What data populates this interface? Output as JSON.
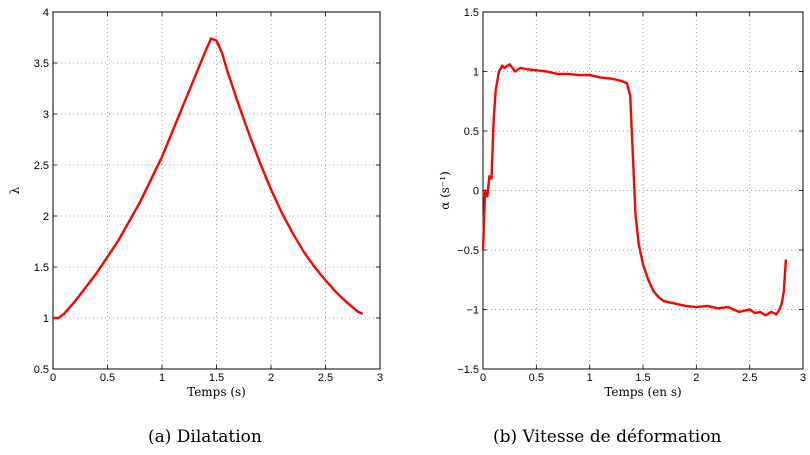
{
  "chart_data": [
    {
      "type": "line",
      "caption": "(a) Dilatation",
      "xlabel": "Temps (s)",
      "ylabel": "λ",
      "xlim": [
        0,
        3
      ],
      "ylim": [
        0.5,
        4
      ],
      "xticks": [
        0,
        0.5,
        1,
        1.5,
        2,
        2.5,
        3
      ],
      "xtick_labels": [
        "0",
        "0.5",
        "1",
        "1.5",
        "2",
        "2.5",
        "3"
      ],
      "yticks": [
        0.5,
        1,
        1.5,
        2,
        2.5,
        3,
        3.5,
        4
      ],
      "ytick_labels": [
        "0.5",
        "1",
        "1.5",
        "2",
        "2.5",
        "3",
        "3.5",
        "4"
      ],
      "grid": true,
      "color": "#ff0000",
      "series": [
        {
          "x": [
            0,
            0.05,
            0.1,
            0.2,
            0.3,
            0.4,
            0.5,
            0.6,
            0.7,
            0.8,
            0.9,
            1.0,
            1.1,
            1.2,
            1.3,
            1.4,
            1.45,
            1.5,
            1.55,
            1.6,
            1.7,
            1.8,
            1.9,
            2.0,
            2.1,
            2.2,
            2.3,
            2.4,
            2.5,
            2.6,
            2.7,
            2.8,
            2.84
          ],
          "y": [
            1.0,
            1.0,
            1.04,
            1.16,
            1.3,
            1.44,
            1.6,
            1.76,
            1.95,
            2.14,
            2.36,
            2.58,
            2.84,
            3.1,
            3.36,
            3.62,
            3.74,
            3.72,
            3.6,
            3.42,
            3.1,
            2.8,
            2.52,
            2.26,
            2.03,
            1.83,
            1.65,
            1.5,
            1.37,
            1.25,
            1.15,
            1.06,
            1.04
          ]
        }
      ]
    },
    {
      "type": "line",
      "caption": "(b) Vitesse de déformation",
      "xlabel": "Temps (en s)",
      "ylabel": "α (s⁻¹)",
      "xlim": [
        0,
        3
      ],
      "ylim": [
        -1.5,
        1.5
      ],
      "xticks": [
        0,
        0.5,
        1,
        1.5,
        2,
        2.5,
        3
      ],
      "xtick_labels": [
        "0",
        "0.5",
        "1",
        "1.5",
        "2",
        "2.5",
        "3"
      ],
      "yticks": [
        -1.5,
        -1,
        -0.5,
        0,
        0.5,
        1,
        1.5
      ],
      "ytick_labels": [
        "−1.5",
        "−1",
        "−0.5",
        "0",
        "0.5",
        "1",
        "1.5"
      ],
      "grid": true,
      "color": "#ff0000",
      "series": [
        {
          "x": [
            0,
            0.02,
            0.04,
            0.06,
            0.08,
            0.1,
            0.12,
            0.15,
            0.18,
            0.2,
            0.25,
            0.3,
            0.35,
            0.4,
            0.5,
            0.6,
            0.7,
            0.8,
            0.9,
            1.0,
            1.1,
            1.2,
            1.3,
            1.35,
            1.38,
            1.4,
            1.43,
            1.46,
            1.5,
            1.55,
            1.6,
            1.65,
            1.7,
            1.8,
            1.9,
            2.0,
            2.1,
            2.2,
            2.3,
            2.4,
            2.5,
            2.55,
            2.6,
            2.65,
            2.7,
            2.75,
            2.78,
            2.8,
            2.82,
            2.84
          ],
          "y": [
            -0.5,
            0.0,
            -0.05,
            0.12,
            0.1,
            0.6,
            0.85,
            1.0,
            1.05,
            1.03,
            1.06,
            1.0,
            1.03,
            1.02,
            1.01,
            1.0,
            0.98,
            0.98,
            0.97,
            0.97,
            0.95,
            0.94,
            0.92,
            0.9,
            0.8,
            0.4,
            -0.2,
            -0.45,
            -0.62,
            -0.75,
            -0.85,
            -0.9,
            -0.93,
            -0.95,
            -0.97,
            -0.98,
            -0.97,
            -0.99,
            -0.98,
            -1.02,
            -1.0,
            -1.03,
            -1.02,
            -1.05,
            -1.02,
            -1.04,
            -1.0,
            -0.95,
            -0.85,
            -0.58
          ]
        }
      ]
    }
  ]
}
